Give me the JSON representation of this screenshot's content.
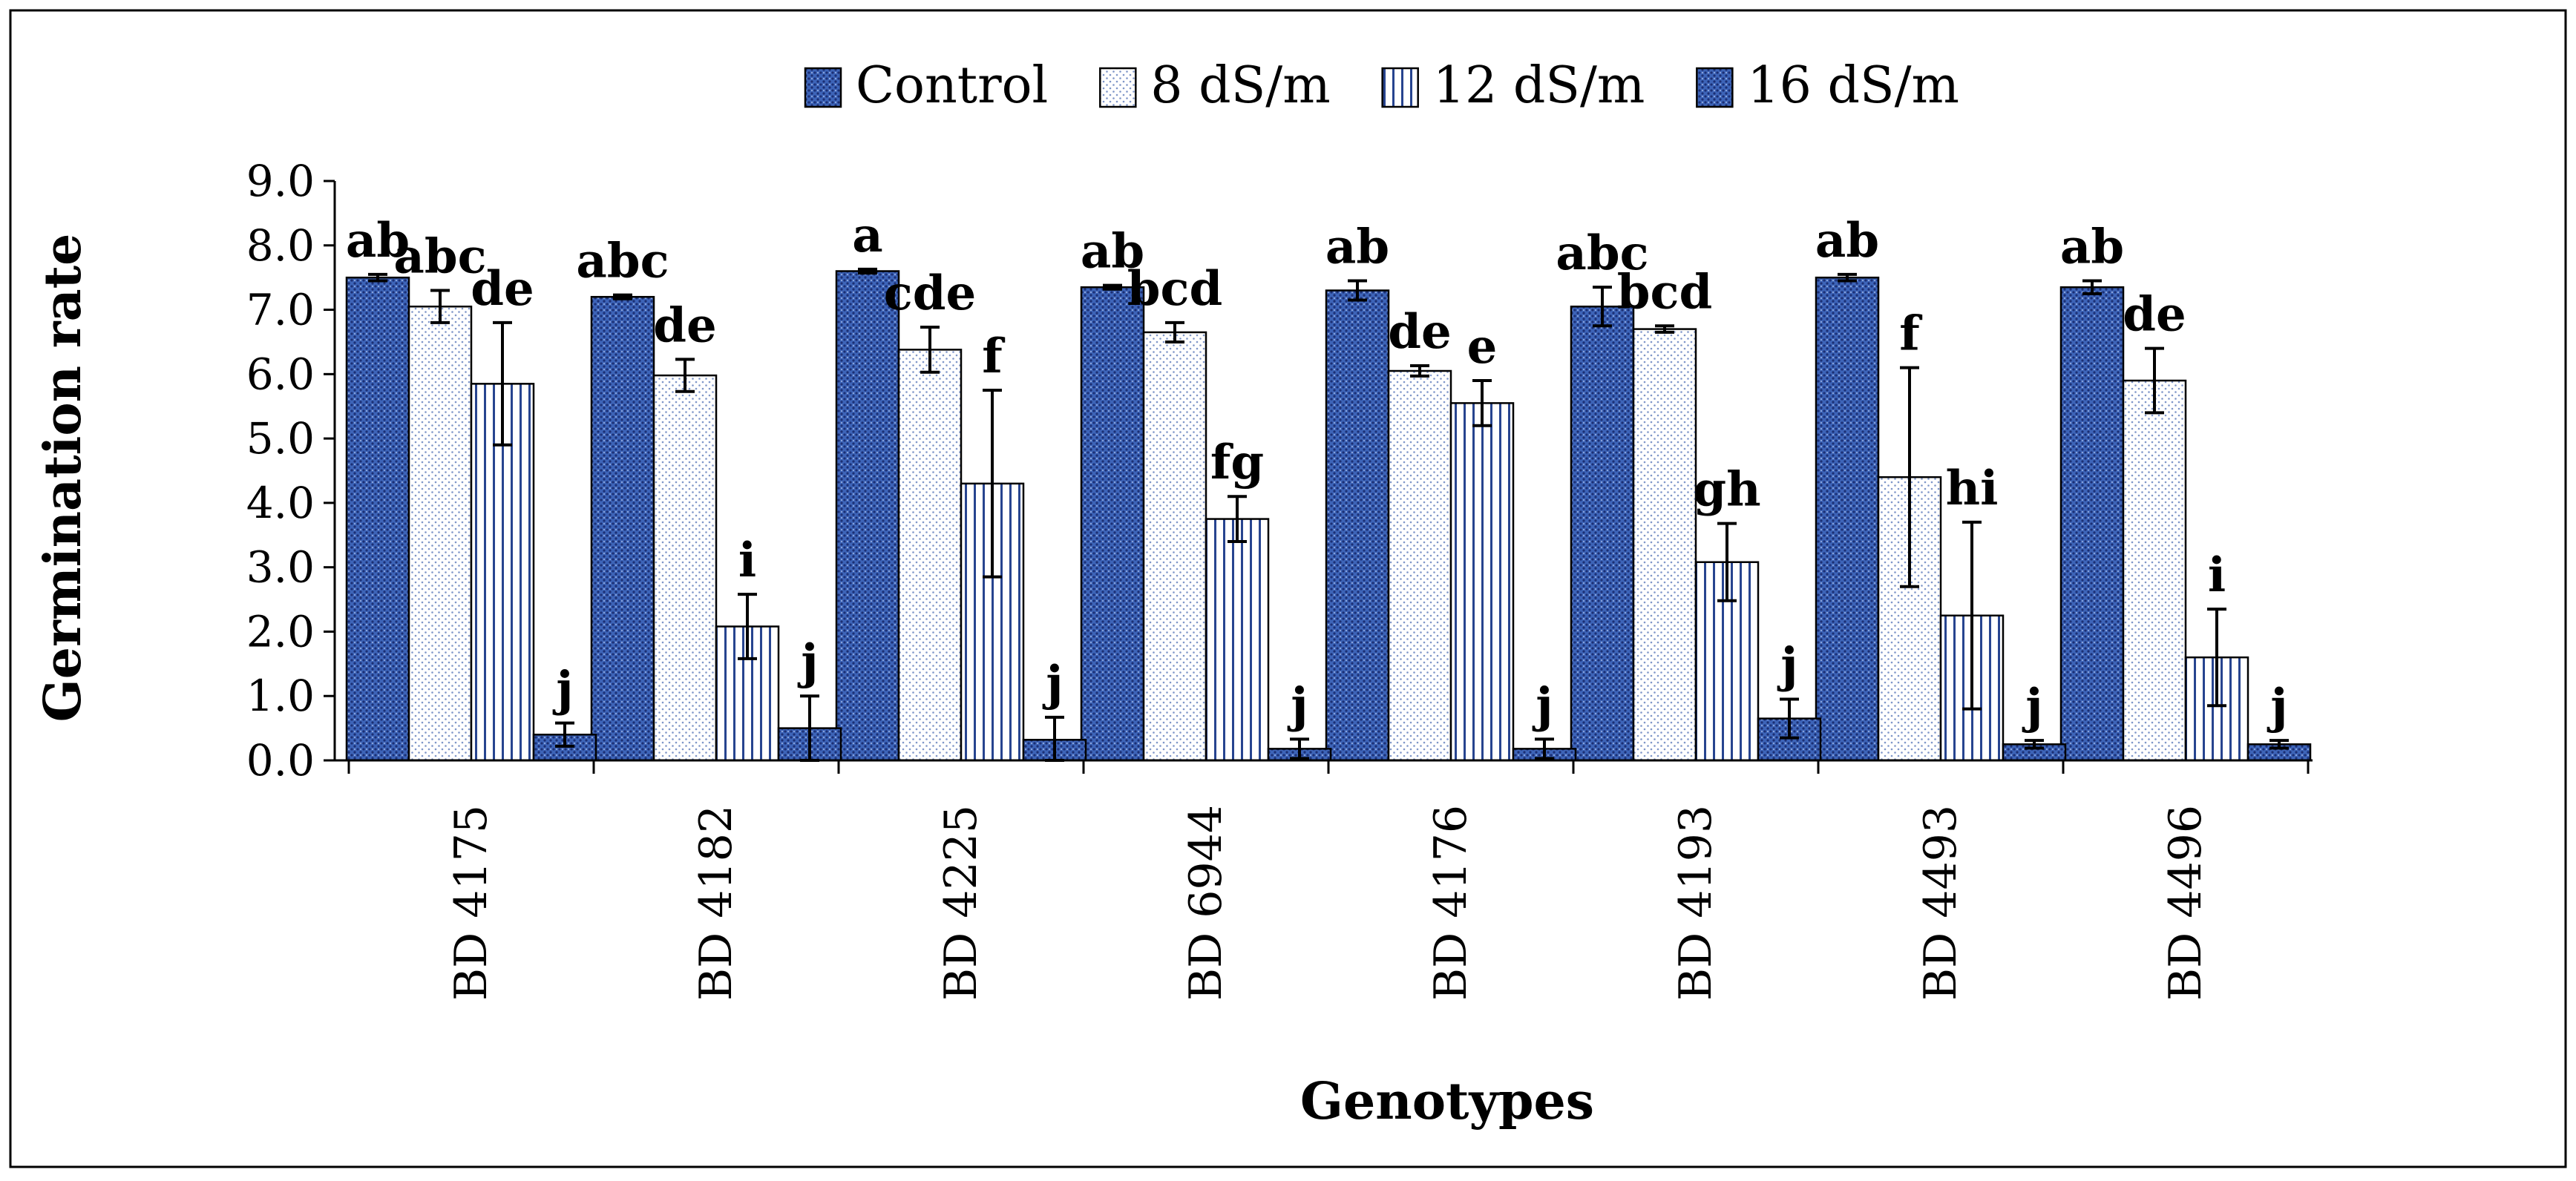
{
  "chart_data": {
    "type": "bar",
    "title": "",
    "xlabel": "Genotypes",
    "ylabel": "Germination rate",
    "ylim": [
      0,
      9
    ],
    "yticks": [
      "0.0",
      "1.0",
      "2.0",
      "3.0",
      "4.0",
      "5.0",
      "6.0",
      "7.0",
      "8.0",
      "9.0"
    ],
    "categories": [
      "BD 4175",
      "BD 4182",
      "BD 4225",
      "BD 6944",
      "BD 4176",
      "BD 4193",
      "BD 4493",
      "BD 4496"
    ],
    "legend_position": "top",
    "series": [
      {
        "name": "Control",
        "color": "#3d64b8",
        "pattern": "dots-dark",
        "values": [
          7.5,
          7.2,
          7.6,
          7.35,
          7.3,
          7.05,
          7.5,
          7.35
        ],
        "errors": [
          0.05,
          0.03,
          0.03,
          0.03,
          0.15,
          0.3,
          0.05,
          0.1
        ],
        "labels": [
          "ab",
          "abc",
          "a",
          "ab",
          "ab",
          "abc",
          "ab",
          "ab"
        ]
      },
      {
        "name": "8 dS/m",
        "color": "#e6edf7",
        "pattern": "dots-light",
        "values": [
          7.05,
          5.98,
          6.38,
          6.65,
          6.05,
          6.7,
          4.4,
          5.9
        ],
        "errors": [
          0.25,
          0.25,
          0.35,
          0.15,
          0.08,
          0.05,
          1.7,
          0.5
        ],
        "labels": [
          "abc",
          "de",
          "cde",
          "bcd",
          "de",
          "bcd",
          "f",
          "de"
        ]
      },
      {
        "name": "12 dS/m",
        "color": "#ffffff",
        "pattern": "vertical-lines",
        "values": [
          5.85,
          2.08,
          4.3,
          3.75,
          5.55,
          3.08,
          2.25,
          1.6
        ],
        "errors": [
          0.95,
          0.5,
          1.45,
          0.35,
          0.35,
          0.6,
          1.45,
          0.75
        ],
        "labels": [
          "de",
          "i",
          "f",
          "fg",
          "e",
          "gh",
          "hi",
          "i"
        ]
      },
      {
        "name": "16 dS/m",
        "color": "#2b55b0",
        "pattern": "dots-dark",
        "values": [
          0.4,
          0.5,
          0.32,
          0.18,
          0.18,
          0.65,
          0.25,
          0.25
        ],
        "errors": [
          0.18,
          0.5,
          0.35,
          0.15,
          0.15,
          0.3,
          0.06,
          0.06
        ],
        "labels": [
          "j",
          "j",
          "j",
          "j",
          "j",
          "j",
          "j",
          "j"
        ]
      }
    ]
  }
}
